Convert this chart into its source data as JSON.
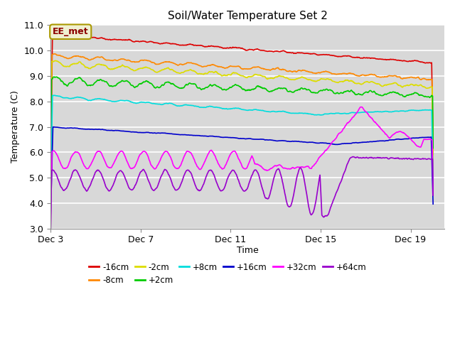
{
  "title": "Soil/Water Temperature Set 2",
  "ylabel": "Temperature (C)",
  "xlabel": "Time",
  "ylim": [
    3.0,
    11.0
  ],
  "yticks": [
    3.0,
    4.0,
    5.0,
    6.0,
    7.0,
    8.0,
    9.0,
    10.0,
    11.0
  ],
  "xtick_labels": [
    "Dec 3",
    "Dec 7",
    "Dec 11",
    "Dec 15",
    "Dec 19"
  ],
  "xtick_pos": [
    0,
    4,
    8,
    12,
    16
  ],
  "xlim": [
    0,
    17.5
  ],
  "bg_color": "#d8d8d8",
  "fig_bg": "#ffffff",
  "series": [
    {
      "label": "-16cm",
      "color": "#dd0000",
      "lw": 1.2
    },
    {
      "label": "-8cm",
      "color": "#ff8800",
      "lw": 1.2
    },
    {
      "label": "-2cm",
      "color": "#dddd00",
      "lw": 1.2
    },
    {
      "label": "+2cm",
      "color": "#00cc00",
      "lw": 1.2
    },
    {
      "label": "+8cm",
      "color": "#00dddd",
      "lw": 1.2
    },
    {
      "label": "+16cm",
      "color": "#0000cc",
      "lw": 1.2
    },
    {
      "label": "+32cm",
      "color": "#ff00ff",
      "lw": 1.2
    },
    {
      "label": "+64cm",
      "color": "#9900cc",
      "lw": 1.2
    }
  ],
  "annotation_label": "EE_met",
  "grid_color": "#bbbbbb"
}
